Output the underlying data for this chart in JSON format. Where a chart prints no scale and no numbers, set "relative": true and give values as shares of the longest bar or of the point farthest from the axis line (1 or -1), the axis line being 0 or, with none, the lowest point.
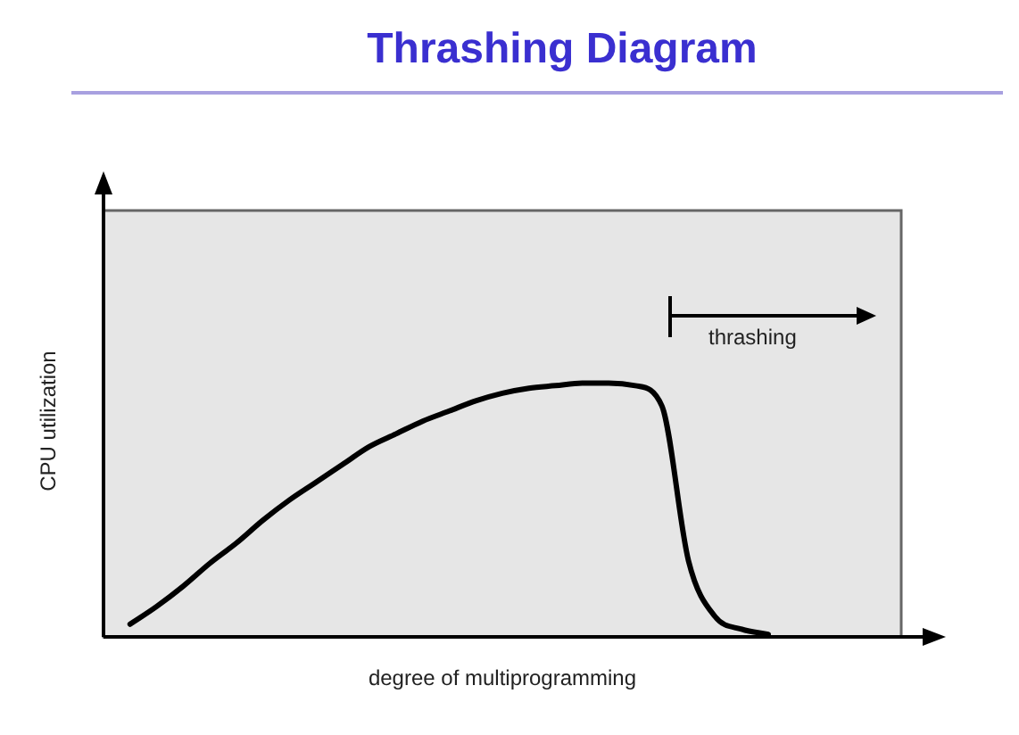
{
  "chart_data": {
    "type": "line",
    "title": "Thrashing Diagram",
    "xlabel": "degree of multiprogramming",
    "ylabel": "CPU utilization",
    "relative": true,
    "marker": "none",
    "categories": [
      null,
      null,
      null,
      null,
      null,
      null,
      null,
      null,
      null,
      null,
      null,
      null,
      null,
      null,
      null,
      null,
      null,
      null,
      null,
      null,
      null,
      null,
      null,
      null,
      null,
      null,
      null,
      null,
      null,
      null,
      null
    ],
    "series": [
      {
        "color": "#000000",
        "values": [
          null,
          0.05,
          0.12,
          0.2,
          0.29,
          0.37,
          0.46,
          0.54,
          0.61,
          0.68,
          0.75,
          0.8,
          0.85,
          0.89,
          0.93,
          0.96,
          0.98,
          0.99,
          1,
          1,
          0.99,
          0.91,
          0.3,
          0.08,
          0.03,
          0.01,
          null,
          null,
          null,
          null,
          null
        ]
      }
    ],
    "annotations": [
      "thrashing"
    ]
  }
}
